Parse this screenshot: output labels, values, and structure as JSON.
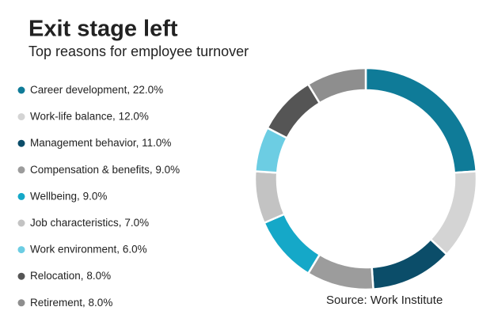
{
  "chart_data": {
    "type": "donut",
    "title": "Exit stage left",
    "subtitle": "Top reasons for employee turnover",
    "categories": [
      "Career development",
      "Work-life balance",
      "Management behavior",
      "Compensation & benefits",
      "Wellbeing",
      "Job characteristics",
      "Work environment",
      "Relocation",
      "Retirement"
    ],
    "values": [
      22,
      12,
      11,
      9,
      9,
      7,
      6,
      8,
      8
    ],
    "value_labels": [
      "22.0%",
      "12.0%",
      "11.0%",
      "9.0%",
      "9.0%",
      "7.0%",
      "6.0%",
      "8.0%",
      "8.0%"
    ],
    "colors": [
      "#0f7b98",
      "#d4d4d4",
      "#0b4d69",
      "#9c9c9c",
      "#15a8c8",
      "#c3c3c3",
      "#6ccde3",
      "#555555",
      "#8e8e8e"
    ],
    "source": "Source: Work Institute"
  }
}
